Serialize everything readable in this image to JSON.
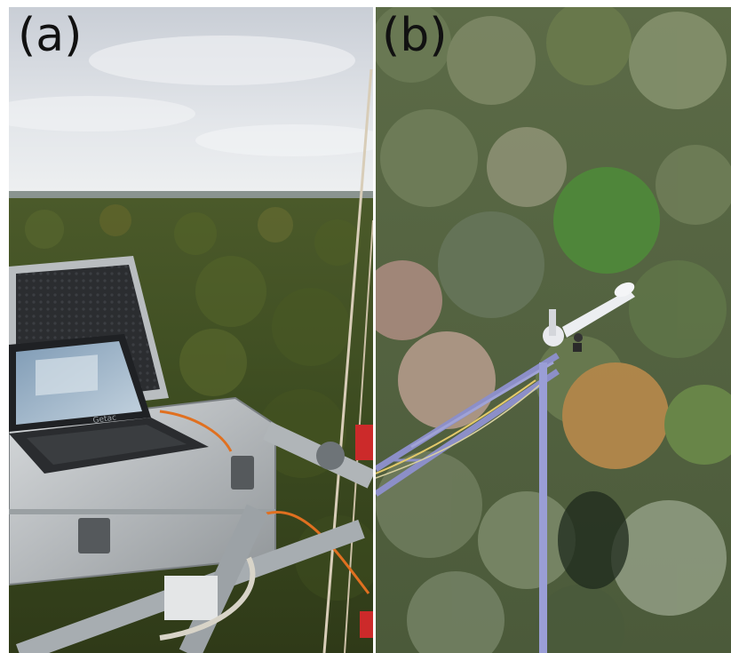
{
  "figure": {
    "panels": [
      {
        "label": "(a)",
        "scene": "laptop-in-case-on-tower-over-forest"
      },
      {
        "label": "(b)",
        "scene": "tower-boom-with-instrument-over-forest-canopy"
      }
    ],
    "device_brand": "Getac",
    "colors": {
      "sky": "#d9dde3",
      "forest_dark": "#3a4a1e",
      "forest_autumn": "#b98a4c",
      "metal": "#c8ccd0",
      "cable": "#e07020"
    }
  }
}
